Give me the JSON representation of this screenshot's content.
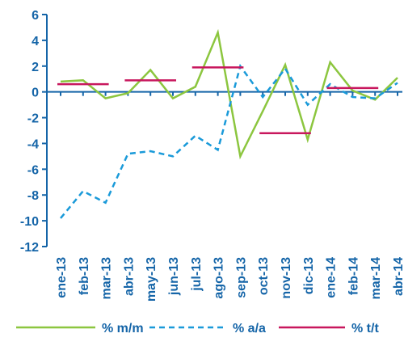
{
  "chart_data": {
    "type": "line",
    "categories": [
      "ene-13",
      "feb-13",
      "mar-13",
      "abr-13",
      "may-13",
      "jun-13",
      "jul-13",
      "ago-13",
      "sep-13",
      "oct-13",
      "nov-13",
      "dic-13",
      "ene-14",
      "feb-14",
      "mar-14",
      "abr-14"
    ],
    "ylim": [
      -12,
      6
    ],
    "yticks": [
      6,
      4,
      2,
      0,
      -2,
      -4,
      -6,
      -8,
      -10,
      -12
    ],
    "ytick_labels": [
      "6",
      "4",
      "2",
      "0",
      "-2",
      "-4",
      "-6",
      "-8",
      "-10",
      "-12"
    ],
    "grid": false,
    "legend_position": "bottom",
    "series": [
      {
        "name": "% m/m",
        "style": "solid",
        "color": "#8cc63f",
        "values": [
          0.8,
          0.9,
          -0.5,
          -0.1,
          1.7,
          -0.5,
          0.4,
          4.6,
          -5.0,
          -1.5,
          2.1,
          -3.7,
          2.3,
          0.1,
          -0.6,
          1.1
        ]
      },
      {
        "name": "% a/a",
        "style": "dashed",
        "color": "#1a9ad9",
        "values": [
          -9.8,
          -7.7,
          -8.6,
          -4.8,
          -4.6,
          -5.0,
          -3.4,
          -4.5,
          2.0,
          -0.4,
          1.8,
          -1.0,
          0.6,
          -0.4,
          -0.5,
          0.7
        ]
      },
      {
        "name": "% t/t",
        "style": "step",
        "color": "#c8175d",
        "segments": [
          {
            "from": "ene-13",
            "to": "mar-13",
            "value": 0.6
          },
          {
            "from": "abr-13",
            "to": "jun-13",
            "value": 0.9
          },
          {
            "from": "jul-13",
            "to": "sep-13",
            "value": 1.9
          },
          {
            "from": "oct-13",
            "to": "dic-13",
            "value": -3.2
          },
          {
            "from": "ene-14",
            "to": "mar-14",
            "value": 0.3
          }
        ]
      }
    ]
  }
}
